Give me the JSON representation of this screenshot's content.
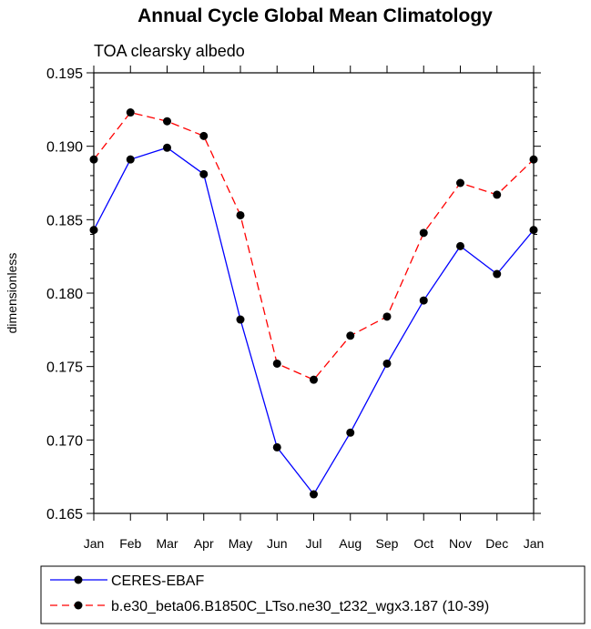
{
  "chart_data": {
    "type": "line",
    "title": "Annual Cycle Global Mean Climatology",
    "subtitle": "TOA clearsky albedo",
    "ylabel": "dimensionless",
    "xlabel": "",
    "categories": [
      "Jan",
      "Feb",
      "Mar",
      "Apr",
      "May",
      "Jun",
      "Jul",
      "Aug",
      "Sep",
      "Oct",
      "Nov",
      "Dec",
      "Jan"
    ],
    "ylim": [
      0.165,
      0.195
    ],
    "yticks": [
      "0.165",
      "0.170",
      "0.175",
      "0.180",
      "0.185",
      "0.190",
      "0.195"
    ],
    "grid": false,
    "legend_position": "bottom",
    "series": [
      {
        "name": "CERES-EBAF",
        "color": "#0000ff",
        "line_style": "solid",
        "marker": "filled-circle",
        "values": [
          0.1843,
          0.1891,
          0.1899,
          0.1881,
          0.1782,
          0.1695,
          0.1663,
          0.1705,
          0.1752,
          0.1795,
          0.1832,
          0.1813,
          0.1843
        ]
      },
      {
        "name": "b.e30_beta06.B1850C_LTso.ne30_t232_wgx3.187 (10-39)",
        "color": "#ff0000",
        "line_style": "dashed",
        "marker": "filled-circle",
        "values": [
          0.1891,
          0.1923,
          0.1917,
          0.1907,
          0.1853,
          0.1752,
          0.1741,
          0.1771,
          0.1784,
          0.1841,
          0.1875,
          0.1867,
          0.1891
        ]
      }
    ]
  }
}
